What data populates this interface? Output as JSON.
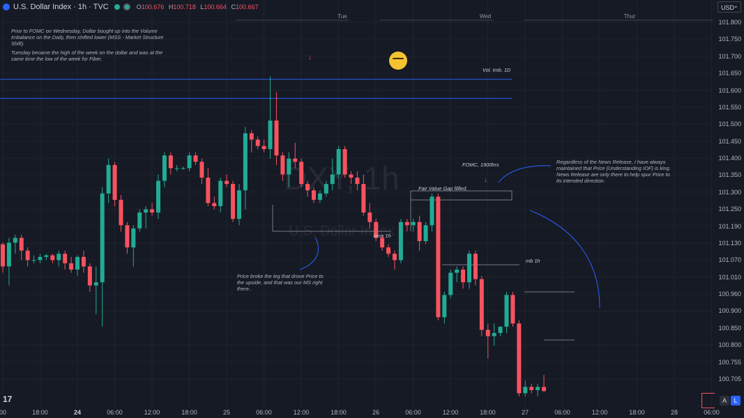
{
  "header": {
    "symbol_title": "U.S. Dollar Index · 1h · TVC",
    "ohlc": {
      "o_label": "O",
      "o": "100.676",
      "h_label": "H",
      "h": "100.718",
      "l_label": "L",
      "l": "100.664",
      "c_label": "C",
      "c": "100.667"
    },
    "currency": "USD"
  },
  "colors": {
    "up": "#22ab94",
    "down": "#f7525f",
    "line": "#2962ff",
    "bg": "#161a25"
  },
  "icons": [
    "tradingview-logo-icon",
    "symbol-logo-icon",
    "visibility-eye-icon",
    "emoji-nerd-icon",
    "down-arrow-icon"
  ],
  "watermark": {
    "symbol": "DXY, 1h",
    "name": "U.S. Dollar Index"
  },
  "annotations": {
    "note_fomc_prior": "Prior to FOMC on Wednesday, Dollar bought up into the Volume Imbalance on the Daily, then shifted lower (MSS - Market Structure Shift).",
    "note_tuesday": "Tuesday became the high of the week on the dollar and was at the same time the low of the week for Fiber.",
    "note_price_broke": "Price broke the leg that drove Price to the upside, and that was our MS right there..",
    "note_news": "Regardless of the News Release, I have always maintained that Price (Understanding IOF) is king. News Release are only there to help spur Price to its intended direction.",
    "vol_imb": "Vol. Imb. 1D",
    "fomc": "FOMC, 1900hrs",
    "fvg": "Fair Value Gap fillled.",
    "bms": "-bms 1h",
    "mb": "mb 1h",
    "day_tue": "Tue",
    "day_wed": "Wed",
    "day_thur": "Thur"
  },
  "toggles": {
    "auto": "A",
    "log": "L"
  },
  "chart_data": {
    "type": "candlestick",
    "symbol": "U.S. Dollar Index",
    "interval": "1h",
    "ylim": [
      100.705,
      101.83
    ],
    "yticks": [
      "101.800",
      "101.750",
      "101.700",
      "101.650",
      "101.600",
      "101.550",
      "101.500",
      "101.450",
      "101.400",
      "101.350",
      "101.300",
      "101.250",
      "101.190",
      "101.130",
      "101.070",
      "101.010",
      "100.960",
      "100.900",
      "100.850",
      "100.800",
      "100.755",
      "100.705"
    ],
    "xticks": [
      "00",
      "18:00",
      "24",
      "06:00",
      "12:00",
      "18:00",
      "25",
      "06:00",
      "12:00",
      "18:00",
      "26",
      "06:00",
      "12:00",
      "18:00",
      "27",
      "06:00",
      "12:00",
      "18:00",
      "28",
      "06:00"
    ],
    "xticks_bold": [
      "24"
    ],
    "levels": {
      "vol_imb_top": 101.65,
      "vol_imb_bottom": 101.59
    },
    "candles": [
      [
        101.13,
        101.135,
        101.04,
        101.06
      ],
      [
        101.06,
        101.15,
        101.0,
        101.135
      ],
      [
        101.135,
        101.16,
        101.1,
        101.15
      ],
      [
        101.15,
        101.16,
        101.08,
        101.11
      ],
      [
        101.11,
        101.12,
        101.06,
        101.08
      ],
      [
        101.08,
        101.095,
        101.07,
        101.08
      ],
      [
        101.08,
        101.1,
        101.07,
        101.09
      ],
      [
        101.09,
        101.1,
        101.08,
        101.095
      ],
      [
        101.095,
        101.1,
        101.07,
        101.08
      ],
      [
        101.08,
        101.11,
        101.06,
        101.1
      ],
      [
        101.1,
        101.11,
        101.05,
        101.07
      ],
      [
        101.07,
        101.09,
        101.04,
        101.05
      ],
      [
        101.05,
        101.095,
        101.03,
        101.09
      ],
      [
        101.09,
        101.11,
        101.04,
        101.06
      ],
      [
        101.06,
        101.07,
        100.98,
        101.0
      ],
      [
        101.0,
        101.06,
        100.91,
        101.01
      ],
      [
        101.01,
        101.31,
        100.87,
        101.29
      ],
      [
        101.29,
        101.4,
        101.26,
        101.38
      ],
      [
        101.38,
        101.39,
        101.25,
        101.27
      ],
      [
        101.27,
        101.285,
        101.17,
        101.19
      ],
      [
        101.19,
        101.2,
        101.1,
        101.12
      ],
      [
        101.12,
        101.19,
        101.06,
        101.18
      ],
      [
        101.18,
        101.24,
        101.17,
        101.23
      ],
      [
        101.23,
        101.25,
        101.18,
        101.24
      ],
      [
        101.24,
        101.26,
        101.22,
        101.23
      ],
      [
        101.23,
        101.35,
        101.21,
        101.33
      ],
      [
        101.33,
        101.42,
        101.31,
        101.41
      ],
      [
        101.41,
        101.42,
        101.35,
        101.37
      ],
      [
        101.37,
        101.38,
        101.36,
        101.37
      ],
      [
        101.37,
        101.375,
        101.365,
        101.37
      ],
      [
        101.37,
        101.42,
        101.36,
        101.41
      ],
      [
        101.41,
        101.42,
        101.38,
        101.39
      ],
      [
        101.39,
        101.4,
        101.32,
        101.34
      ],
      [
        101.34,
        101.37,
        101.25,
        101.26
      ],
      [
        101.26,
        101.28,
        101.24,
        101.25
      ],
      [
        101.25,
        101.34,
        101.23,
        101.33
      ],
      [
        101.33,
        101.35,
        101.31,
        101.32
      ],
      [
        101.32,
        101.33,
        101.2,
        101.21
      ],
      [
        101.21,
        101.32,
        101.19,
        101.3
      ],
      [
        101.3,
        101.5,
        101.24,
        101.48
      ],
      [
        101.48,
        101.49,
        101.42,
        101.46
      ],
      [
        101.46,
        101.47,
        101.43,
        101.44
      ],
      [
        101.44,
        101.46,
        101.42,
        101.43
      ],
      [
        101.43,
        101.66,
        101.4,
        101.52
      ],
      [
        101.52,
        101.61,
        101.38,
        101.41
      ],
      [
        101.41,
        101.42,
        101.33,
        101.35
      ],
      [
        101.35,
        101.42,
        101.31,
        101.4
      ],
      [
        101.4,
        101.45,
        101.37,
        101.39
      ],
      [
        101.39,
        101.4,
        101.31,
        101.32
      ],
      [
        101.32,
        101.33,
        101.28,
        101.3
      ],
      [
        101.3,
        101.31,
        101.26,
        101.27
      ],
      [
        101.27,
        101.3,
        101.26,
        101.29
      ],
      [
        101.29,
        101.33,
        101.28,
        101.32
      ],
      [
        101.32,
        101.4,
        101.3,
        101.35
      ],
      [
        101.35,
        101.44,
        101.34,
        101.43
      ],
      [
        101.43,
        101.44,
        101.34,
        101.35
      ],
      [
        101.35,
        101.36,
        101.32,
        101.34
      ],
      [
        101.34,
        101.36,
        101.3,
        101.32
      ],
      [
        101.32,
        101.35,
        101.22,
        101.23
      ],
      [
        101.23,
        101.26,
        101.18,
        101.2
      ],
      [
        101.2,
        101.21,
        101.14,
        101.15
      ],
      [
        101.15,
        101.16,
        101.11,
        101.12
      ],
      [
        101.12,
        101.13,
        101.09,
        101.1
      ],
      [
        101.1,
        101.11,
        101.05,
        101.08
      ],
      [
        101.08,
        101.21,
        101.07,
        101.2
      ],
      [
        101.2,
        101.21,
        101.17,
        101.19
      ],
      [
        101.19,
        101.21,
        101.17,
        101.2
      ],
      [
        101.2,
        101.22,
        101.11,
        101.14
      ],
      [
        101.14,
        101.2,
        101.13,
        101.19
      ],
      [
        101.19,
        101.29,
        101.17,
        101.28
      ],
      [
        101.28,
        101.29,
        100.89,
        100.9
      ],
      [
        100.9,
        100.98,
        100.88,
        100.97
      ],
      [
        100.97,
        101.05,
        100.96,
        101.04
      ],
      [
        101.04,
        101.06,
        101.01,
        101.05
      ],
      [
        101.05,
        101.06,
        100.99,
        101.01
      ],
      [
        101.01,
        101.11,
        100.99,
        101.1
      ],
      [
        101.1,
        101.11,
        101.0,
        101.02
      ],
      [
        101.02,
        101.03,
        100.84,
        100.86
      ],
      [
        100.86,
        100.88,
        100.77,
        100.84
      ],
      [
        100.84,
        100.88,
        100.81,
        100.85
      ],
      [
        100.85,
        100.87,
        100.84,
        100.87
      ],
      [
        100.87,
        100.98,
        100.85,
        100.97
      ],
      [
        100.97,
        100.98,
        100.87,
        100.88
      ],
      [
        100.88,
        100.89,
        100.65,
        100.66
      ],
      [
        100.66,
        100.7,
        100.65,
        100.68
      ],
      [
        100.68,
        100.69,
        100.66,
        100.67
      ],
      [
        100.67,
        100.69,
        100.65,
        100.68
      ],
      [
        100.68,
        100.718,
        100.664,
        100.667
      ]
    ]
  }
}
